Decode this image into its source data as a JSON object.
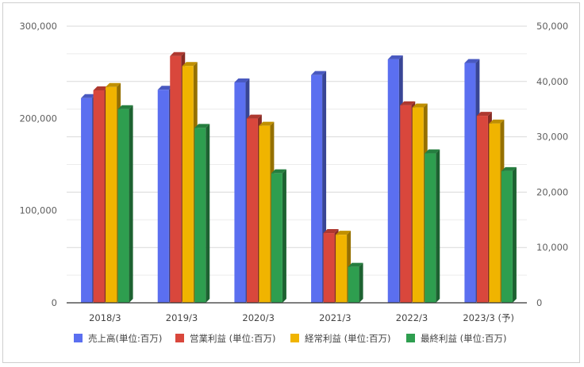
{
  "chart_data": {
    "type": "bar",
    "categories": [
      "2018/3",
      "2019/3",
      "2020/3",
      "2021/3",
      "2022/3",
      "2023/3 (予)"
    ],
    "series": [
      {
        "name": "売上高(単位:百万)",
        "axis": "left",
        "color": "#5b6ff0",
        "values": [
          222000,
          231000,
          239000,
          247000,
          264000,
          260000
        ]
      },
      {
        "name": "営業利益 (単位:百万)",
        "axis": "right",
        "color": "#d9473c",
        "values": [
          38400,
          44600,
          33300,
          12600,
          35700,
          33800
        ]
      },
      {
        "name": "経常利益 (単位:百万)",
        "axis": "right",
        "color": "#f0b400",
        "values": [
          39000,
          42800,
          32000,
          12300,
          35300,
          32400
        ]
      },
      {
        "name": "最終利益 (単位:百万)",
        "axis": "right",
        "color": "#2e9e4f",
        "values": [
          35000,
          31600,
          23400,
          6500,
          27000,
          23800
        ]
      }
    ],
    "left_axis": {
      "ticks": [
        "0",
        "100,000",
        "200,000",
        "300,000"
      ],
      "max": 300000
    },
    "right_axis": {
      "ticks": [
        "0",
        "10,000",
        "20,000",
        "30,000",
        "40,000",
        "50,000"
      ],
      "max": 50000
    },
    "grid": true,
    "legend_position": "bottom"
  }
}
